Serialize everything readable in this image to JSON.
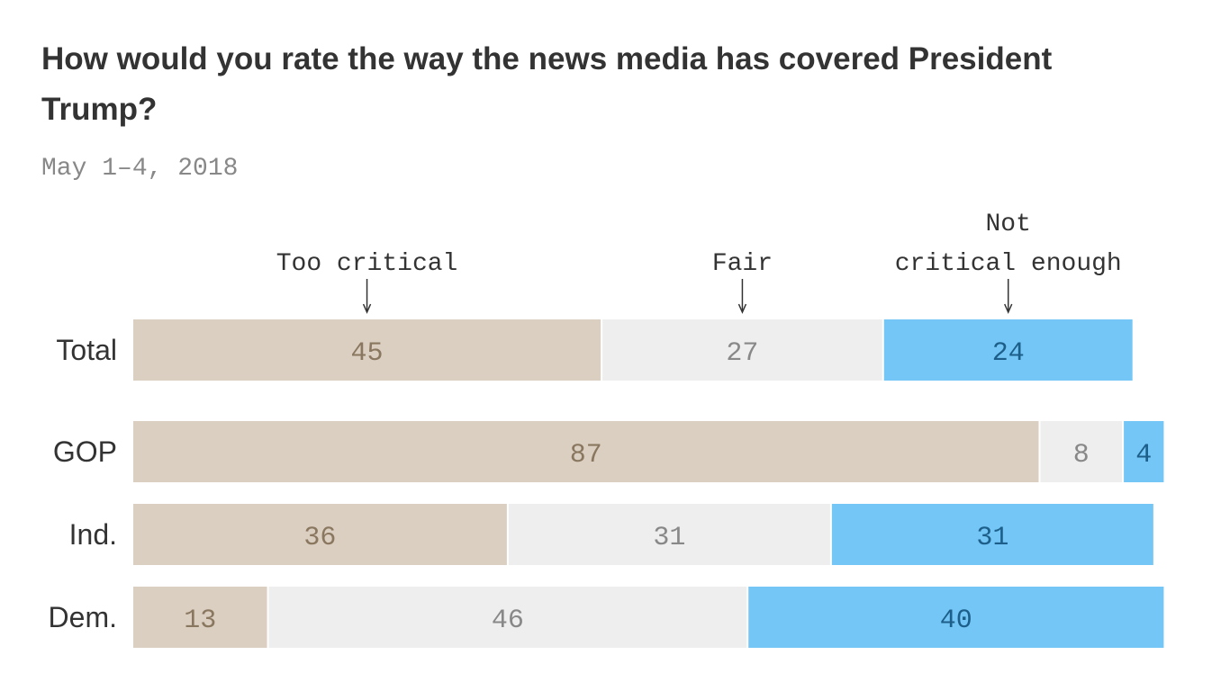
{
  "chart_data": {
    "type": "bar",
    "orientation": "horizontal",
    "stacked": true,
    "title": "How would you rate the way the news media has covered President Trump?",
    "subtitle": "May 1–4, 2018",
    "categories": [
      "Total",
      "GOP",
      "Ind.",
      "Dem."
    ],
    "series": [
      {
        "name": "Too critical",
        "header_lines": [
          "Too critical"
        ],
        "values": [
          45,
          87,
          36,
          13
        ],
        "color": "#dbcfc1",
        "text_color": "#8a7760"
      },
      {
        "name": "Fair",
        "header_lines": [
          "Fair"
        ],
        "values": [
          27,
          8,
          31,
          46
        ],
        "color": "#eeeeee",
        "text_color": "#888888"
      },
      {
        "name": "Not critical enough",
        "header_lines": [
          "Not",
          "critical enough"
        ],
        "values": [
          24,
          4,
          31,
          40
        ],
        "color": "#73c6f5",
        "text_color": "#1d5f8a"
      }
    ],
    "xlim": [
      0,
      100
    ],
    "grid": false,
    "legend": "top, arrows pointing to Total bar"
  }
}
